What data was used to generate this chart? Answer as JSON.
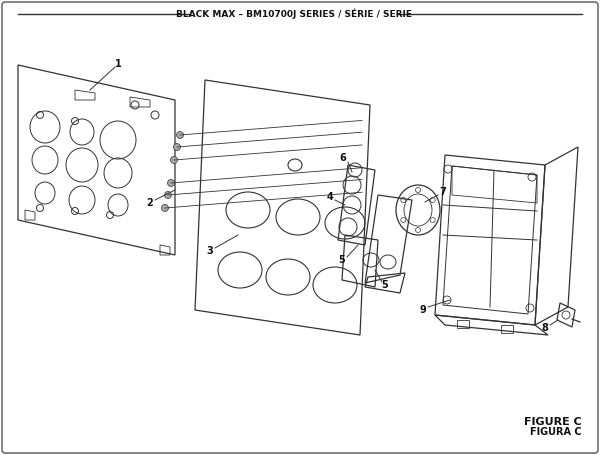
{
  "title": "BLACK MAX – BM10700J SERIES / SÉRIE / SERIE",
  "figure_label": "FIGURE C",
  "figura_label": "FIGURA C",
  "bg_color": "#ffffff",
  "line_color": "#333333",
  "line_color_light": "#555555"
}
